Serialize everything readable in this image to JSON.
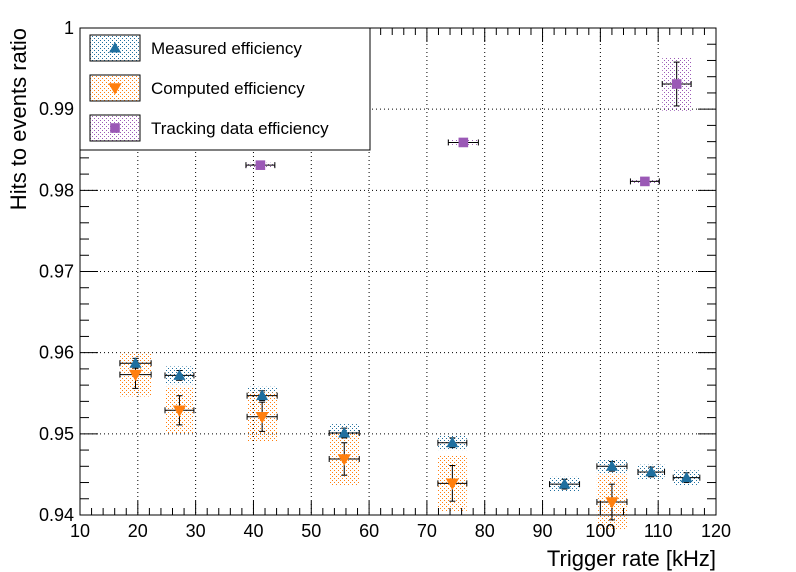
{
  "chart_data": {
    "type": "scatter",
    "title": "",
    "xlabel": "Trigger rate [kHz]",
    "ylabel": "Hits to events ratio",
    "xlim": [
      10,
      120
    ],
    "ylim": [
      0.94,
      1.0
    ],
    "xticks": [
      10,
      20,
      30,
      40,
      50,
      60,
      70,
      80,
      90,
      100,
      110,
      120
    ],
    "yticks": [
      0.94,
      0.95,
      0.96,
      0.97,
      0.98,
      0.99,
      1.0
    ],
    "ytick_labels": [
      "0.94",
      "0.95",
      "0.96",
      "0.97",
      "0.98",
      "0.99",
      "1"
    ],
    "grid": true,
    "legend_position": "top-left",
    "series": [
      {
        "name": "Measured efficiency",
        "color": "#1f6f9f",
        "marker": "triangle-up",
        "points": [
          {
            "x": 19.6,
            "y": 0.9587,
            "xerr": 2.7,
            "yerr": 0.0011,
            "sys": 0.0006
          },
          {
            "x": 27.2,
            "y": 0.9572,
            "xerr": 2.5,
            "yerr": 0.0011,
            "sys": 0.0006
          },
          {
            "x": 41.5,
            "y": 0.9547,
            "xerr": 2.6,
            "yerr": 0.0011,
            "sys": 0.0006
          },
          {
            "x": 55.7,
            "y": 0.9501,
            "xerr": 2.6,
            "yerr": 0.0011,
            "sys": 0.0006
          },
          {
            "x": 74.4,
            "y": 0.9489,
            "xerr": 2.5,
            "yerr": 0.0009,
            "sys": 0.0006
          },
          {
            "x": 93.8,
            "y": 0.9438,
            "xerr": 2.6,
            "yerr": 0.0009,
            "sys": 0.0006
          },
          {
            "x": 102.0,
            "y": 0.946,
            "xerr": 2.6,
            "yerr": 0.0009,
            "sys": 0.0006
          },
          {
            "x": 108.8,
            "y": 0.9453,
            "xerr": 2.3,
            "yerr": 0.0009,
            "sys": 0.0006
          },
          {
            "x": 114.9,
            "y": 0.9446,
            "xerr": 2.3,
            "yerr": 0.0009,
            "sys": 0.0006
          }
        ]
      },
      {
        "name": "Computed efficiency",
        "color": "#ff7f0e",
        "marker": "triangle-down",
        "points": [
          {
            "x": 19.6,
            "y": 0.9573,
            "xerr": 2.7,
            "yerr": 0.0027,
            "sys": 0.0017
          },
          {
            "x": 27.2,
            "y": 0.9529,
            "xerr": 2.5,
            "yerr": 0.0029,
            "sys": 0.0018
          },
          {
            "x": 41.5,
            "y": 0.9521,
            "xerr": 2.6,
            "yerr": 0.003,
            "sys": 0.0018
          },
          {
            "x": 55.7,
            "y": 0.9469,
            "xerr": 2.6,
            "yerr": 0.0032,
            "sys": 0.002
          },
          {
            "x": 74.4,
            "y": 0.9439,
            "xerr": 2.5,
            "yerr": 0.0034,
            "sys": 0.0022
          },
          {
            "x": 102.0,
            "y": 0.9416,
            "xerr": 2.6,
            "yerr": 0.0034,
            "sys": 0.0022
          }
        ]
      },
      {
        "name": "Tracking data efficiency",
        "color": "#9b59b6",
        "marker": "square",
        "points": [
          {
            "x": 41.2,
            "y": 0.9831,
            "xerr": 2.5,
            "yerr": 0.0003,
            "sys": 0.0003
          },
          {
            "x": 76.3,
            "y": 0.9859,
            "xerr": 2.6,
            "yerr": 0.0003,
            "sys": 0.0003
          },
          {
            "x": 107.7,
            "y": 0.9811,
            "xerr": 2.5,
            "yerr": 0.0003,
            "sys": 0.0003
          },
          {
            "x": 113.2,
            "y": 0.9931,
            "xerr": 2.5,
            "yerr": 0.0033,
            "sys": 0.0027
          }
        ]
      }
    ]
  }
}
